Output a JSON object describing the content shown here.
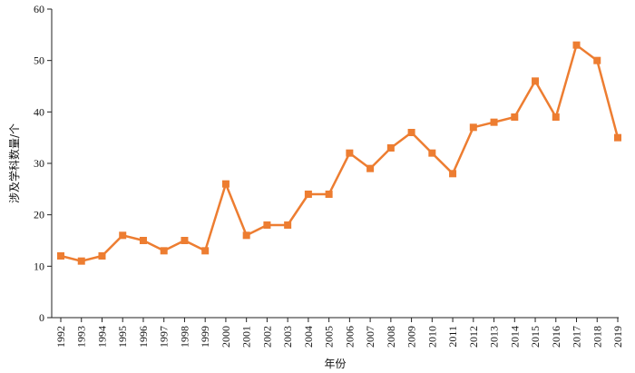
{
  "chart_data": {
    "type": "line",
    "title": "",
    "xlabel": "年份",
    "ylabel": "涉及学科数量/个",
    "ylim": [
      0,
      60
    ],
    "yticks": [
      0,
      10,
      20,
      30,
      40,
      50,
      60
    ],
    "grid": false,
    "legend": "none",
    "line_color": "#ED7D31",
    "marker": "square",
    "x": [
      "1992",
      "1993",
      "1994",
      "1995",
      "1996",
      "1997",
      "1998",
      "1999",
      "2000",
      "2001",
      "2002",
      "2003",
      "2004",
      "2005",
      "2006",
      "2007",
      "2008",
      "2009",
      "2010",
      "2011",
      "2012",
      "2013",
      "2014",
      "2015",
      "2016",
      "2017",
      "2018",
      "2019"
    ],
    "series": [
      {
        "values": [
          12,
          11,
          12,
          16,
          15,
          13,
          15,
          13,
          26,
          16,
          18,
          18,
          24,
          24,
          32,
          29,
          33,
          36,
          32,
          28,
          37,
          38,
          39,
          46,
          39,
          53,
          50,
          35
        ]
      }
    ]
  }
}
